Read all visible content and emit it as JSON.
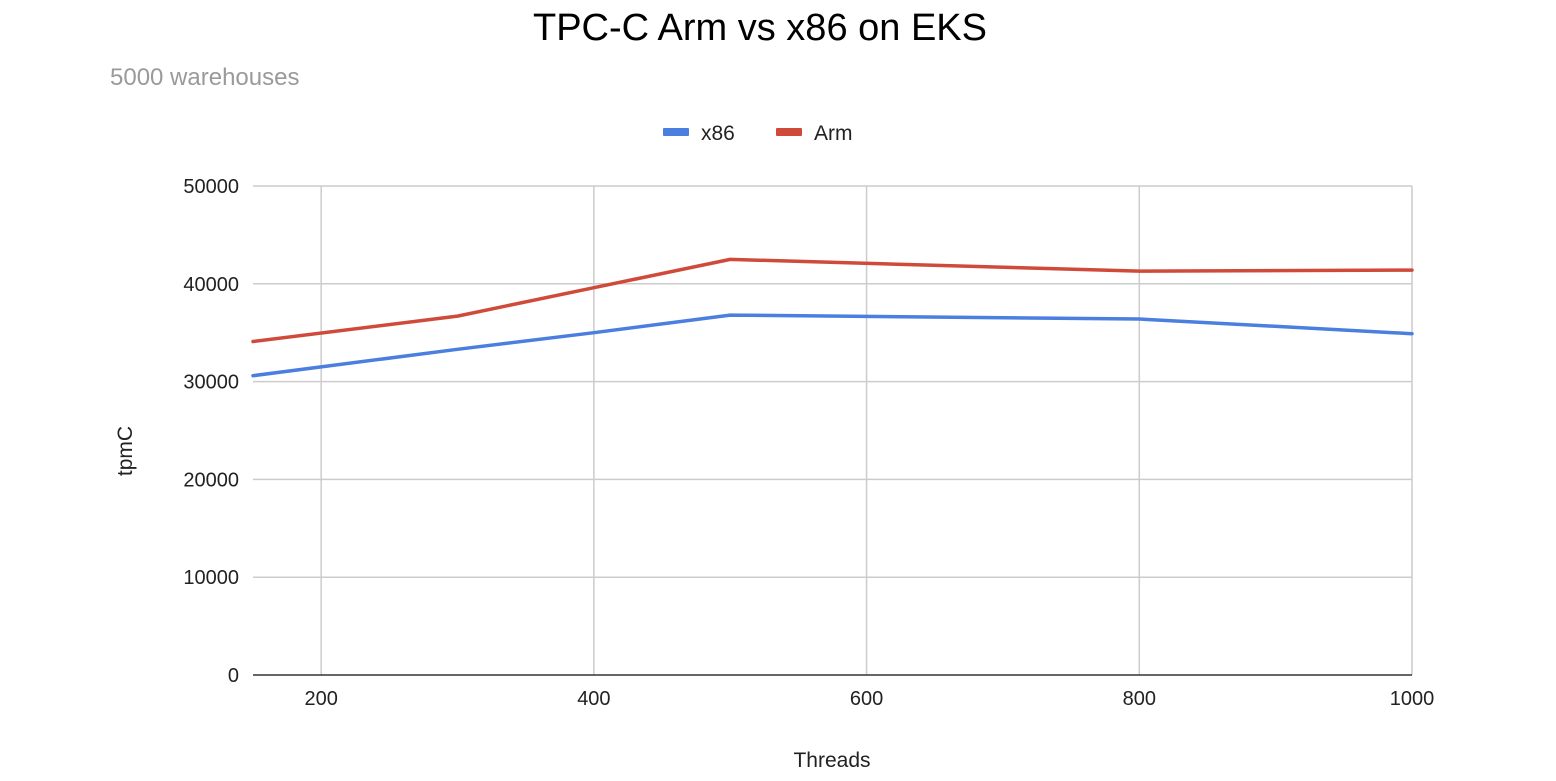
{
  "chart_data": {
    "type": "line",
    "title": "TPC-C Arm vs x86 on EKS",
    "subtitle": "5000 warehouses",
    "xlabel": "Threads",
    "ylabel": "tpmC",
    "xlim": [
      150,
      1000
    ],
    "ylim": [
      0,
      50000
    ],
    "x_ticks": [
      200,
      400,
      600,
      800,
      1000
    ],
    "y_ticks": [
      0,
      10000,
      20000,
      30000,
      40000,
      50000
    ],
    "grid": true,
    "legend_position": "top",
    "series": [
      {
        "name": "x86",
        "color": "#4a7fe0",
        "x": [
          150,
          300,
          400,
          500,
          800,
          1000
        ],
        "values": [
          30600,
          33300,
          35000,
          36800,
          36400,
          34900
        ]
      },
      {
        "name": "Arm",
        "color": "#d04a3a",
        "x": [
          150,
          300,
          400,
          500,
          800,
          1000
        ],
        "values": [
          34100,
          36700,
          39600,
          42500,
          41300,
          41400
        ]
      }
    ]
  }
}
